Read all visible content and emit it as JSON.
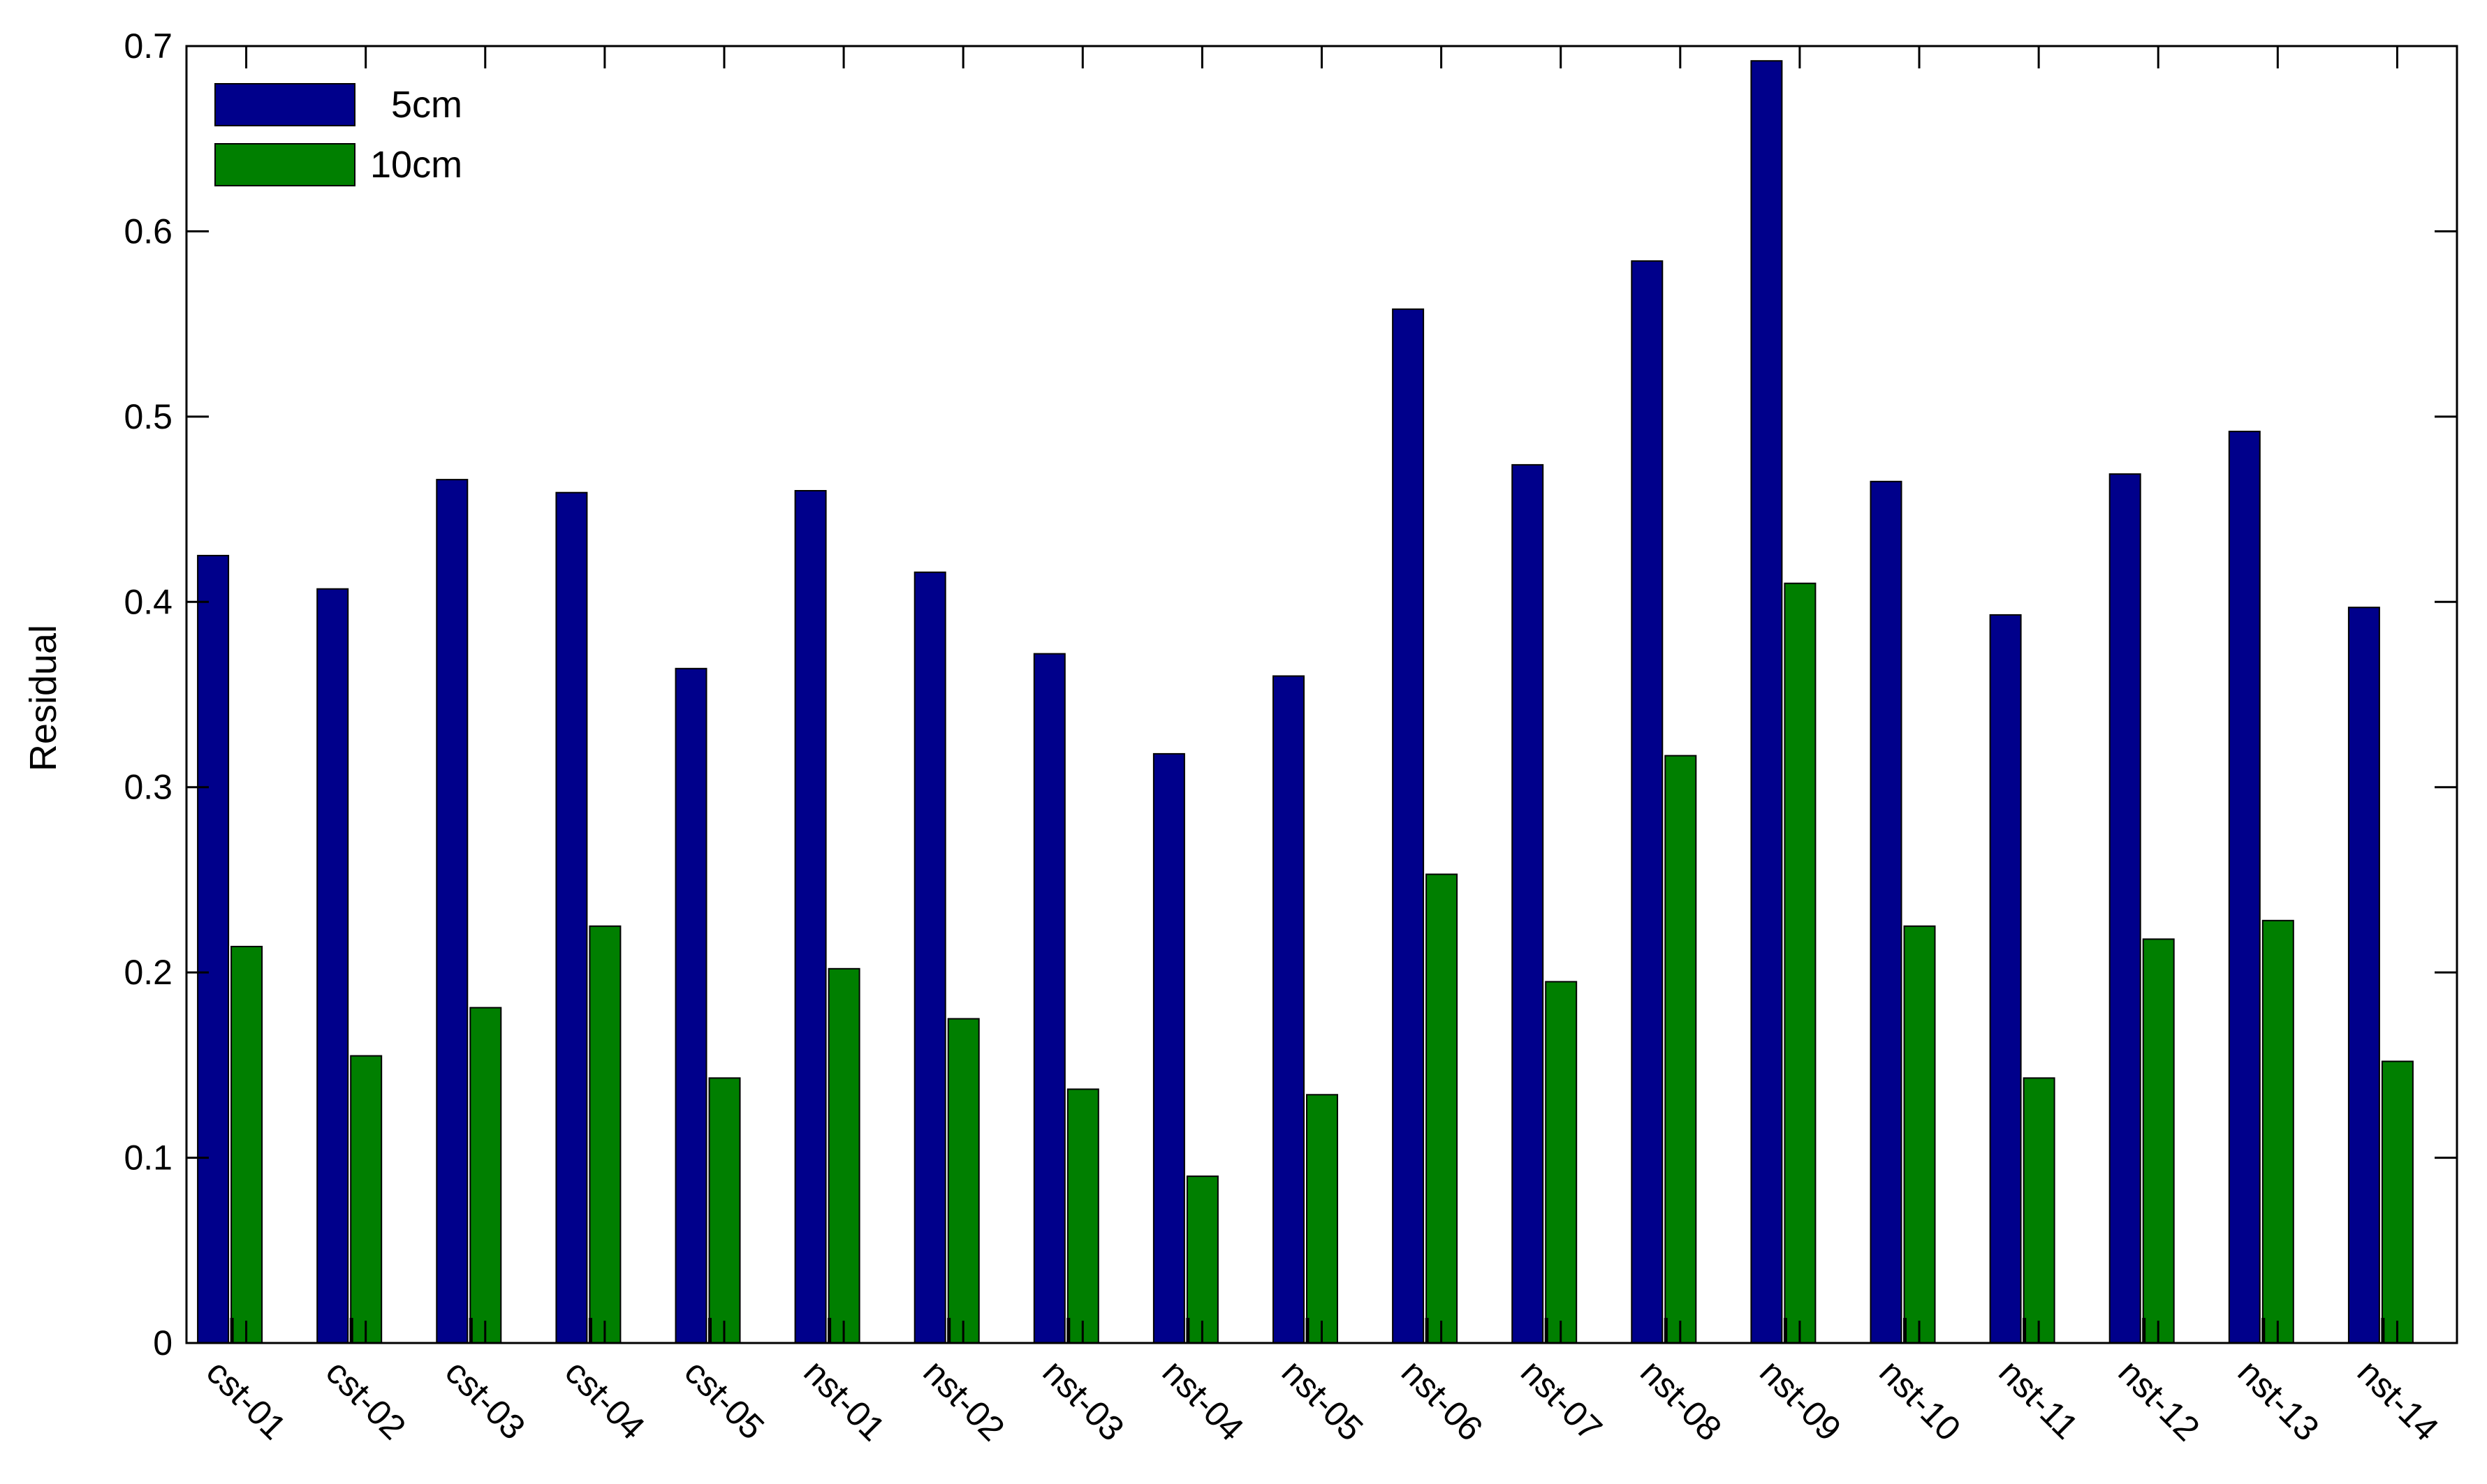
{
  "chart_data": {
    "type": "bar",
    "ylabel": "Residual",
    "xlabel": "",
    "ylim": [
      0,
      0.7
    ],
    "yticks": [
      0,
      0.1,
      0.2,
      0.3,
      0.4,
      0.5,
      0.6,
      0.7
    ],
    "ytick_labels": [
      "0",
      "0.1",
      "0.2",
      "0.3",
      "0.4",
      "0.5",
      "0.6",
      "0.7"
    ],
    "grid": false,
    "legend_position": "top-left",
    "categories": [
      "cst-01",
      "cst-02",
      "cst-03",
      "cst-04",
      "cst-05",
      "nst-01",
      "nst-02",
      "nst-03",
      "nst-04",
      "nst-05",
      "nst-06",
      "nst-07",
      "nst-08",
      "nst-09",
      "nst-10",
      "nst-11",
      "nst-12",
      "nst-13",
      "nst-14"
    ],
    "series": [
      {
        "name": "5cm",
        "color": "#00008B",
        "values": [
          0.425,
          0.407,
          0.466,
          0.459,
          0.364,
          0.46,
          0.416,
          0.372,
          0.318,
          0.36,
          0.558,
          0.474,
          0.584,
          0.692,
          0.465,
          0.393,
          0.469,
          0.492,
          0.397
        ]
      },
      {
        "name": "10cm",
        "color": "#007F00",
        "values": [
          0.214,
          0.155,
          0.181,
          0.225,
          0.143,
          0.202,
          0.175,
          0.137,
          0.09,
          0.134,
          0.253,
          0.195,
          0.317,
          0.41,
          0.225,
          0.143,
          0.218,
          0.228,
          0.152
        ]
      }
    ]
  }
}
